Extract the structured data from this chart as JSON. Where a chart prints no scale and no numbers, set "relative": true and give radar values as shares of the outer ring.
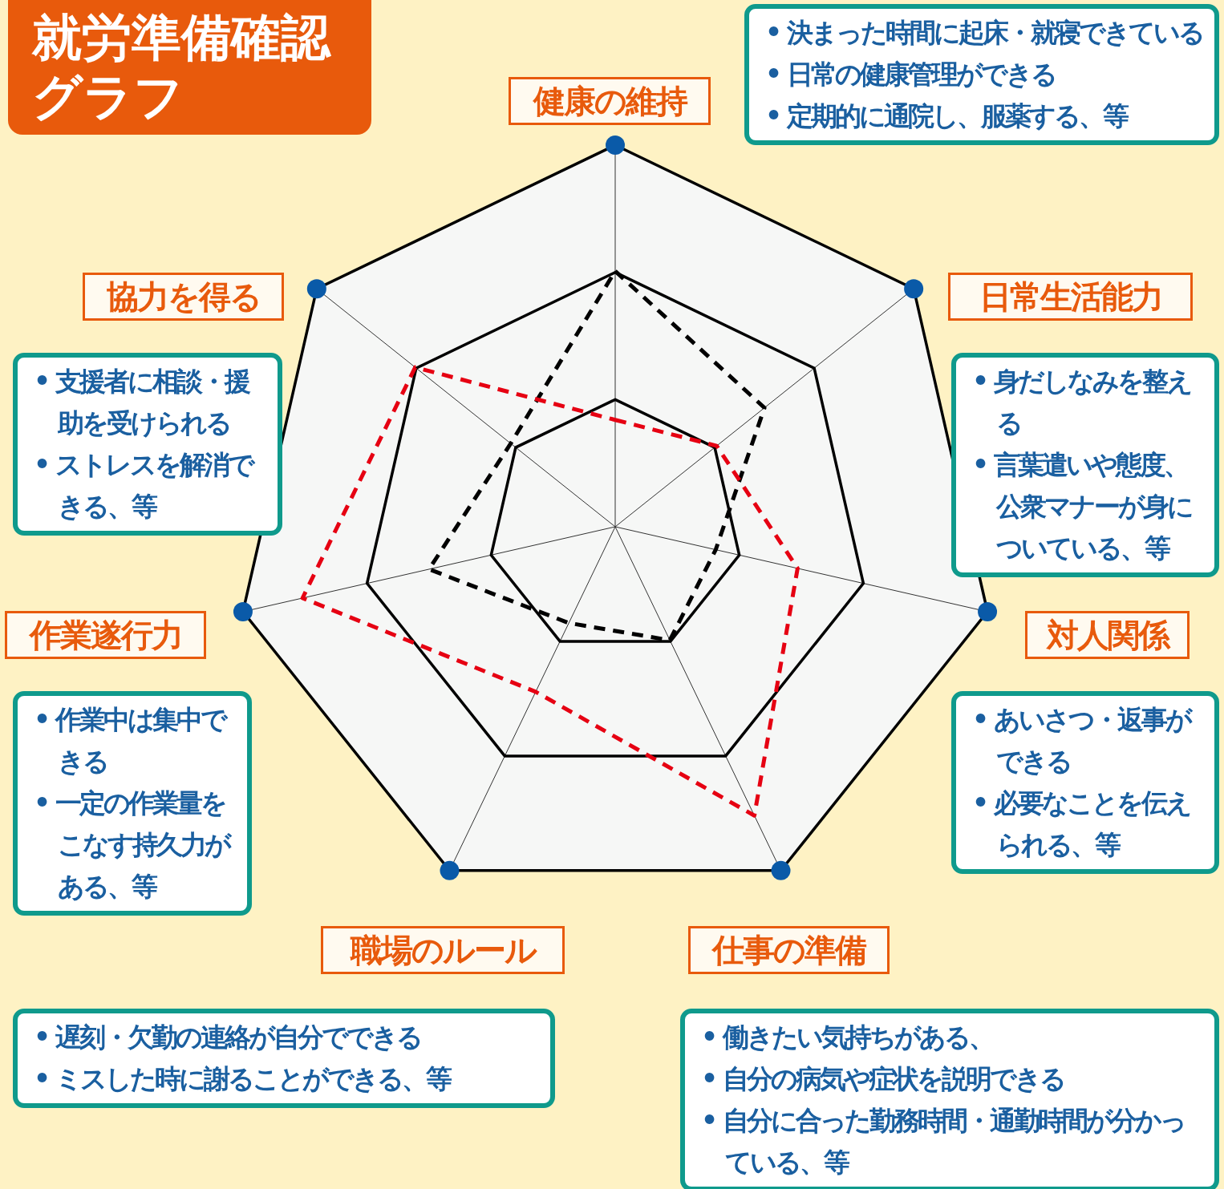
{
  "chart_data": {
    "type": "radar",
    "title": "就労準備確認グラフ",
    "relative": true,
    "categories": [
      "健康の維持",
      "日常生活能力",
      "対人関係",
      "仕事の準備",
      "職場のルール",
      "作業遂行力",
      "協力を得る"
    ],
    "series": [
      {
        "color": "#000000",
        "values": [
          0.67,
          0.5,
          0.27,
          0.33,
          0.28,
          0.5,
          0.35
        ]
      },
      {
        "color": "#e60012",
        "values": [
          0.28,
          0.34,
          0.49,
          0.84,
          0.48,
          0.84,
          0.67
        ]
      }
    ],
    "line_style": "dashed",
    "marker": "none",
    "annotations": [
      "• 決まった時間に起床・就寝できている\n• 日常の健康管理ができる\n• 定期的に通院し、服薬する、等",
      "• 身だしなみを整える\n• 言葉遣いや態度、公衆マナーが身についている、等",
      "• あいさつ・返事ができる\n• 必要なことを伝えられる、等",
      "• 働きたい気持ちがある、\n• 自分の病気や症状を説明できる\n• 自分に合った勤務時間・通勤時間が分かっている、等",
      "• 遅刻・欠勤の連絡が自分でできる\n• ミスした時に謝ることができる、等",
      "• 作業中は集中できる\n• 一定の作業量をこなす持久力がある、等",
      "• 支援者に相談・援助を受けられる\n• ストレスを解消できる、等"
    ]
  }
}
